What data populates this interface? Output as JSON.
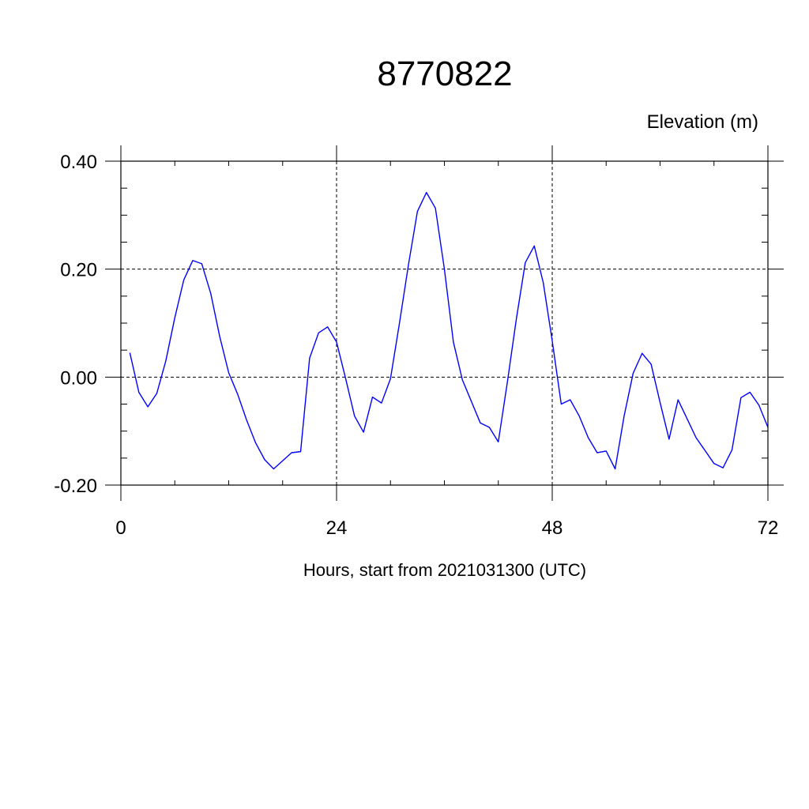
{
  "chart_data": {
    "type": "line",
    "title": "8770822",
    "ylabel": "Elevation (m)",
    "xlabel": "Hours, start from 2021031300 (UTC)",
    "xlim": [
      0,
      72
    ],
    "ylim": [
      -0.2,
      0.4
    ],
    "x_ticks": [
      0,
      24,
      48,
      72
    ],
    "x_tick_labels": [
      "0",
      "24",
      "48",
      "72"
    ],
    "y_ticks": [
      -0.2,
      0.0,
      0.2,
      0.4
    ],
    "y_tick_labels": [
      "-0.20",
      "0.00",
      "0.20",
      "0.40"
    ],
    "grid": "dashed at major ticks",
    "series": [
      {
        "color": "#0000ff",
        "x": [
          1,
          2,
          3,
          4,
          5,
          6,
          7,
          8,
          9,
          10,
          11,
          12,
          13,
          14,
          15,
          16,
          17,
          18,
          19,
          20,
          21,
          22,
          23,
          24,
          25,
          26,
          27,
          28,
          29,
          30,
          31,
          32,
          33,
          34,
          35,
          36,
          37,
          38,
          39,
          40,
          41,
          42,
          43,
          44,
          45,
          46,
          47,
          48,
          49,
          50,
          51,
          52,
          53,
          54,
          55,
          56,
          57,
          58,
          59,
          60,
          61,
          62,
          63,
          64,
          65,
          66,
          67,
          68,
          69,
          70,
          71,
          72
        ],
        "y": [
          0.045,
          -0.028,
          -0.055,
          -0.03,
          0.03,
          0.11,
          0.18,
          0.216,
          0.21,
          0.155,
          0.075,
          0.008,
          -0.032,
          -0.08,
          -0.122,
          -0.153,
          -0.17,
          -0.155,
          -0.14,
          -0.138,
          0.035,
          0.082,
          0.093,
          0.065,
          -0.002,
          -0.072,
          -0.102,
          -0.037,
          -0.048,
          -0.003,
          0.1,
          0.208,
          0.307,
          0.342,
          0.313,
          0.2,
          0.065,
          -0.005,
          -0.045,
          -0.085,
          -0.093,
          -0.12,
          -0.01,
          0.107,
          0.212,
          0.243,
          0.175,
          0.067,
          -0.05,
          -0.042,
          -0.072,
          -0.112,
          -0.14,
          -0.137,
          -0.17,
          -0.072,
          0.007,
          0.044,
          0.024,
          -0.047,
          -0.115,
          -0.042,
          -0.077,
          -0.112,
          -0.136,
          -0.16,
          -0.168,
          -0.135,
          -0.038,
          -0.028,
          -0.052,
          -0.093
        ]
      }
    ]
  }
}
